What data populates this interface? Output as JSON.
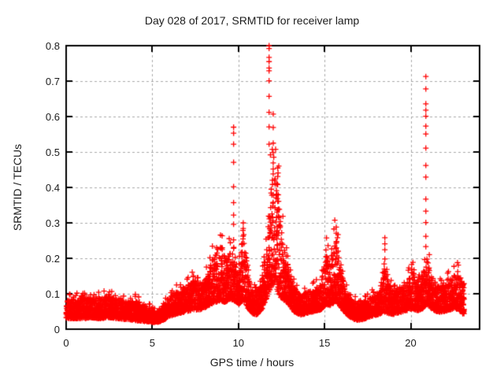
{
  "figure": {
    "background": "#ffffff"
  },
  "chart_data": {
    "type": "scatter",
    "title": "Day 028 of 2017, SRMTID for receiver lamp",
    "xlabel": "GPS time / hours",
    "ylabel": "SRMTID / TECUs",
    "series_name": "SRMTID",
    "xlim": [
      0,
      24
    ],
    "ylim": [
      0,
      0.8
    ],
    "xticks": [
      "0",
      "5",
      "10",
      "15",
      "20"
    ],
    "yticks": [
      "0",
      "0.1",
      "0.2",
      "0.3",
      "0.4",
      "0.5",
      "0.6",
      "0.7",
      "0.8"
    ],
    "grid": true,
    "grid_style": "dashed",
    "legend": "none",
    "marker": "plus",
    "marker_color": "#ff0000",
    "grid_color": "#a8a8a8",
    "axis_color": "#000000",
    "sampling": {
      "seed": 20170128,
      "steps_per_hour": 128,
      "x_start": 0.0,
      "x_end": 23.1
    },
    "band_envelope": [
      [
        0.0,
        0.03,
        0.08
      ],
      [
        0.5,
        0.03,
        0.085
      ],
      [
        1.0,
        0.03,
        0.09
      ],
      [
        1.5,
        0.032,
        0.085
      ],
      [
        2.0,
        0.03,
        0.09
      ],
      [
        2.5,
        0.033,
        0.095
      ],
      [
        3.0,
        0.03,
        0.085
      ],
      [
        3.5,
        0.028,
        0.08
      ],
      [
        4.0,
        0.025,
        0.08
      ],
      [
        4.5,
        0.022,
        0.068
      ],
      [
        5.0,
        0.02,
        0.055
      ],
      [
        5.4,
        0.02,
        0.05
      ],
      [
        5.8,
        0.03,
        0.075
      ],
      [
        6.2,
        0.04,
        0.1
      ],
      [
        6.6,
        0.045,
        0.11
      ],
      [
        7.0,
        0.05,
        0.12
      ],
      [
        7.4,
        0.055,
        0.14
      ],
      [
        7.8,
        0.055,
        0.13
      ],
      [
        8.2,
        0.065,
        0.15
      ],
      [
        8.6,
        0.075,
        0.22
      ],
      [
        9.0,
        0.08,
        0.25
      ],
      [
        9.25,
        0.075,
        0.2
      ],
      [
        9.5,
        0.085,
        0.22
      ],
      [
        9.75,
        0.08,
        0.19
      ],
      [
        10.0,
        0.07,
        0.16
      ],
      [
        10.3,
        0.08,
        0.285
      ],
      [
        10.55,
        0.06,
        0.16
      ],
      [
        10.8,
        0.045,
        0.11
      ],
      [
        11.1,
        0.04,
        0.11
      ],
      [
        11.4,
        0.06,
        0.16
      ],
      [
        11.65,
        0.09,
        0.24
      ],
      [
        11.85,
        0.11,
        0.4
      ],
      [
        12.05,
        0.13,
        0.5
      ],
      [
        12.25,
        0.11,
        0.43
      ],
      [
        12.45,
        0.09,
        0.3
      ],
      [
        12.7,
        0.08,
        0.23
      ],
      [
        12.95,
        0.07,
        0.16
      ],
      [
        13.2,
        0.05,
        0.12
      ],
      [
        13.6,
        0.04,
        0.1
      ],
      [
        14.0,
        0.045,
        0.105
      ],
      [
        14.4,
        0.05,
        0.115
      ],
      [
        14.8,
        0.055,
        0.13
      ],
      [
        15.1,
        0.07,
        0.215
      ],
      [
        15.35,
        0.065,
        0.18
      ],
      [
        15.65,
        0.08,
        0.27
      ],
      [
        15.9,
        0.065,
        0.18
      ],
      [
        16.2,
        0.045,
        0.115
      ],
      [
        16.6,
        0.03,
        0.08
      ],
      [
        17.0,
        0.025,
        0.07
      ],
      [
        17.4,
        0.03,
        0.08
      ],
      [
        17.8,
        0.038,
        0.095
      ],
      [
        18.2,
        0.042,
        0.105
      ],
      [
        18.45,
        0.05,
        0.195
      ],
      [
        18.7,
        0.045,
        0.13
      ],
      [
        19.0,
        0.042,
        0.11
      ],
      [
        19.4,
        0.048,
        0.12
      ],
      [
        19.8,
        0.052,
        0.13
      ],
      [
        20.1,
        0.058,
        0.175
      ],
      [
        20.4,
        0.052,
        0.13
      ],
      [
        20.7,
        0.058,
        0.155
      ],
      [
        20.95,
        0.07,
        0.2
      ],
      [
        21.2,
        0.058,
        0.15
      ],
      [
        21.5,
        0.05,
        0.125
      ],
      [
        21.8,
        0.048,
        0.12
      ],
      [
        22.1,
        0.052,
        0.13
      ],
      [
        22.5,
        0.058,
        0.15
      ],
      [
        22.8,
        0.055,
        0.16
      ],
      [
        23.1,
        0.04,
        0.12
      ]
    ],
    "spike_points": [
      {
        "x": 9.72,
        "values": [
          0.57,
          0.553,
          0.522,
          0.471,
          0.402,
          0.357,
          0.322,
          0.296,
          0.252,
          0.228
        ]
      },
      {
        "x": 10.28,
        "values": [
          0.3,
          0.284
        ]
      },
      {
        "x": 11.78,
        "values": [
          0.8,
          0.792,
          0.767,
          0.755,
          0.737,
          0.729,
          0.701,
          0.657,
          0.612,
          0.571,
          0.522
        ]
      },
      {
        "x": 12.02,
        "values": [
          0.607,
          0.569,
          0.525,
          0.498,
          0.469,
          0.452
        ]
      },
      {
        "x": 12.28,
        "values": [
          0.455,
          0.431,
          0.408
        ]
      },
      {
        "x": 15.68,
        "values": [
          0.288,
          0.271,
          0.247
        ]
      },
      {
        "x": 18.5,
        "values": [
          0.258,
          0.241,
          0.224,
          0.198
        ]
      },
      {
        "x": 20.88,
        "values": [
          0.713,
          0.678,
          0.636,
          0.618,
          0.601,
          0.573,
          0.551,
          0.511,
          0.462,
          0.429,
          0.367,
          0.333,
          0.301,
          0.262,
          0.233
        ]
      }
    ]
  }
}
